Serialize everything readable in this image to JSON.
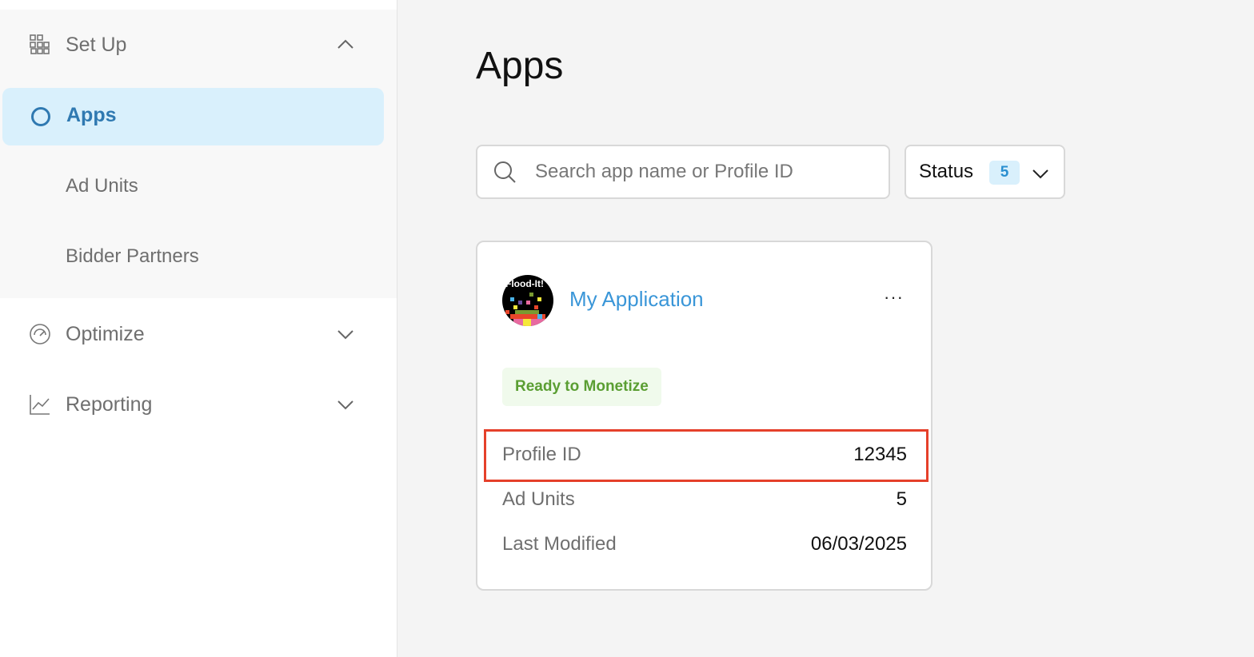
{
  "sidebar": {
    "setup": {
      "label": "Set Up",
      "icon": "grid-icon",
      "expanded": true
    },
    "apps": {
      "label": "Apps",
      "active": true
    },
    "ad_units": {
      "label": "Ad Units"
    },
    "bidder_partners": {
      "label": "Bidder Partners"
    },
    "optimize": {
      "label": "Optimize",
      "icon": "gauge-icon"
    },
    "reporting": {
      "label": "Reporting",
      "icon": "chart-icon"
    }
  },
  "main": {
    "title": "Apps",
    "search": {
      "placeholder": "Search app name or Profile ID",
      "value": ""
    },
    "status_filter": {
      "label": "Status",
      "count": "5"
    },
    "card": {
      "avatar_text": "Flood-It!",
      "name": "My Application",
      "more": "···",
      "status": "Ready to Monetize",
      "rows": [
        {
          "label": "Profile ID",
          "value": "12345"
        },
        {
          "label": "Ad Units",
          "value": "5"
        },
        {
          "label": "Last Modified",
          "value": "06/03/2025"
        }
      ]
    }
  },
  "colors": {
    "accent": "#2f79b1",
    "link": "#3a96d8",
    "success": "#5a9e32",
    "highlight": "#e5402a"
  }
}
